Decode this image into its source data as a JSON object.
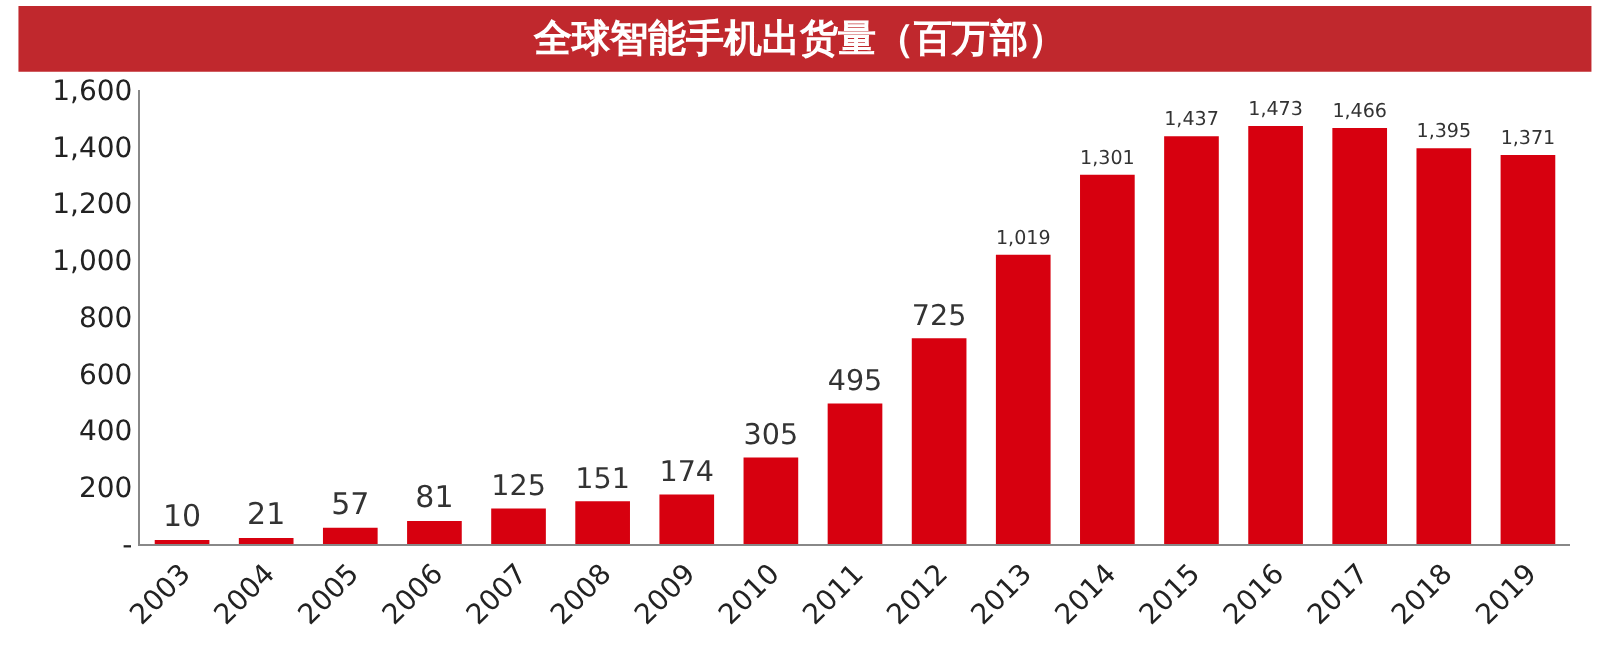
{
  "chart_data": {
    "type": "bar",
    "title": "全球智能手机出货量（百万部）",
    "categories": [
      "2003",
      "2004",
      "2005",
      "2006",
      "2007",
      "2008",
      "2009",
      "2010",
      "2011",
      "2012",
      "2013",
      "2014",
      "2015",
      "2016",
      "2017",
      "2018",
      "2019"
    ],
    "values": [
      10,
      21,
      57,
      81,
      125,
      151,
      174,
      305,
      495,
      725,
      1019,
      1301,
      1437,
      1473,
      1466,
      1395,
      1371
    ],
    "value_labels": [
      "10",
      "21",
      "57",
      "81",
      "125",
      "151",
      "174",
      "305",
      "495",
      "725",
      "1,019",
      "1,301",
      "1,437",
      "1,473",
      "1,466",
      "1,395",
      "1,371"
    ],
    "color": "#d7000f",
    "ylim": [
      0,
      1600
    ],
    "yticks": [
      {
        "value": 0,
        "label": "-"
      },
      {
        "value": 200,
        "label": "200"
      },
      {
        "value": 400,
        "label": "400"
      },
      {
        "value": 600,
        "label": "600"
      },
      {
        "value": 800,
        "label": "800"
      },
      {
        "value": 1000,
        "label": "1,000"
      },
      {
        "value": 1200,
        "label": "1,200"
      },
      {
        "value": 1400,
        "label": "1,400"
      },
      {
        "value": 1600,
        "label": "1,600"
      }
    ],
    "legend": false
  }
}
